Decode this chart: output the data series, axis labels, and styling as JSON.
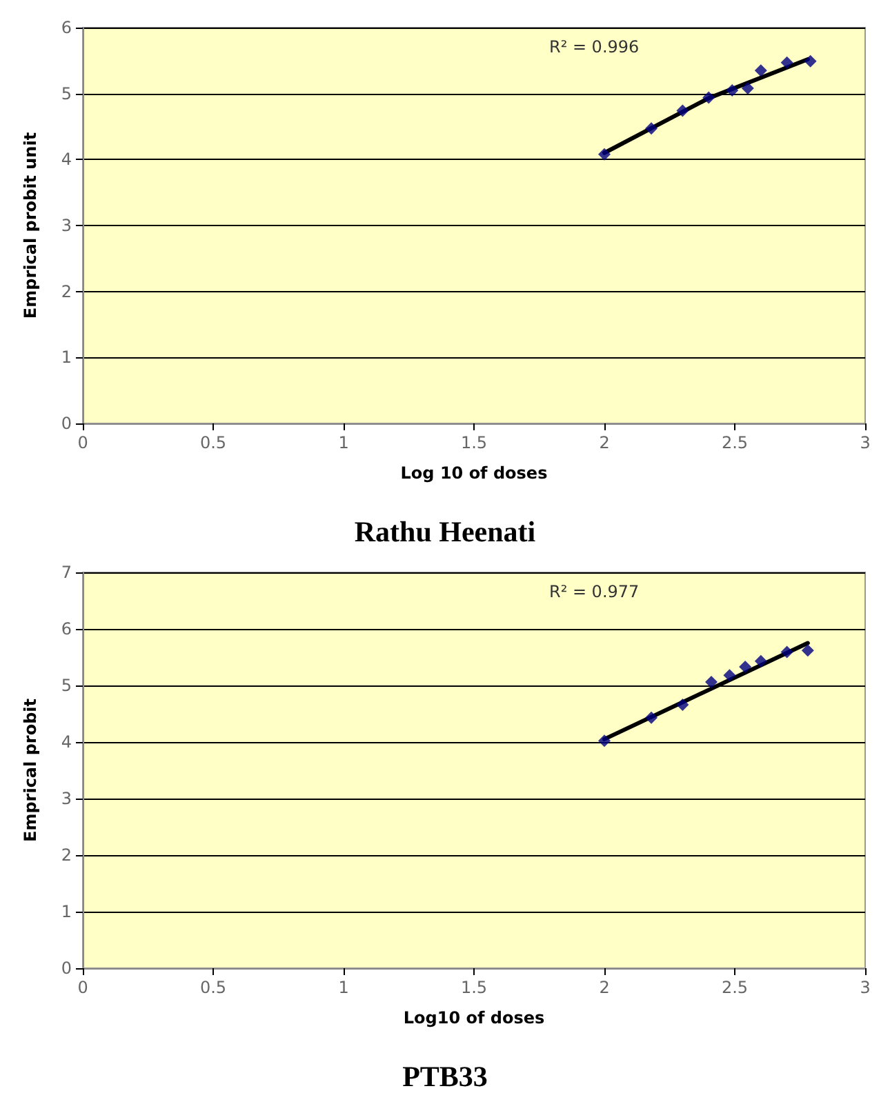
{
  "chart_data": [
    {
      "type": "scatter",
      "title": "Rathu Heenati",
      "xlabel": "Log 10 of doses",
      "ylabel": "Emprical probit unit",
      "annotations": [
        "R² = 0.996"
      ],
      "x": [
        2.0,
        2.18,
        2.3,
        2.4,
        2.49,
        2.55,
        2.6,
        2.7,
        2.79
      ],
      "xlim": [
        0,
        3
      ],
      "xticks": [
        0,
        0.5,
        1,
        1.5,
        2,
        2.5,
        3
      ],
      "ylim": [
        0,
        6
      ],
      "yticks": [
        0,
        1,
        2,
        3,
        4,
        5,
        6
      ],
      "grid": "y",
      "series": [
        {
          "color": "#000080",
          "marker": "diamond",
          "values": [
            4.08,
            4.47,
            4.74,
            4.94,
            5.05,
            5.08,
            5.35,
            5.47,
            5.49
          ]
        },
        {
          "type": "line",
          "color": "#000000",
          "marker": "none",
          "line_style": "solid",
          "x": [
            2.0,
            2.4,
            2.78
          ],
          "values": [
            4.1,
            4.93,
            5.52
          ]
        }
      ]
    },
    {
      "type": "scatter",
      "title": "PTB33",
      "xlabel": "Log10 of doses",
      "ylabel": "Emprical probit",
      "annotations": [
        "R² = 0.977"
      ],
      "x": [
        2.0,
        2.18,
        2.3,
        2.41,
        2.48,
        2.54,
        2.6,
        2.7,
        2.78
      ],
      "xlim": [
        0,
        3
      ],
      "xticks": [
        0,
        0.5,
        1,
        1.5,
        2,
        2.5,
        3
      ],
      "ylim": [
        0,
        7
      ],
      "yticks": [
        0,
        1,
        2,
        3,
        4,
        5,
        6,
        7
      ],
      "grid": "y",
      "series": [
        {
          "color": "#000080",
          "marker": "diamond",
          "values": [
            4.02,
            4.43,
            4.66,
            5.06,
            5.18,
            5.33,
            5.43,
            5.59,
            5.62
          ]
        },
        {
          "type": "line",
          "color": "#000000",
          "marker": "none",
          "line_style": "solid",
          "x": [
            2.0,
            2.78
          ],
          "values": [
            4.05,
            5.75
          ]
        }
      ]
    }
  ]
}
